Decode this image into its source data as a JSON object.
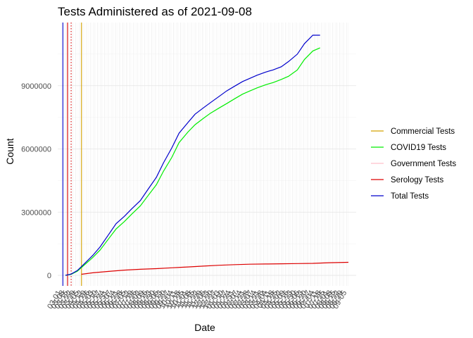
{
  "chart_data": {
    "type": "line",
    "title": "Tests Administered as of 2021-09-08",
    "xlabel": "Date",
    "ylabel": "Count",
    "ylim": [
      -500000,
      12000000
    ],
    "y_ticks": [
      0,
      3000000,
      6000000,
      9000000
    ],
    "y_tick_labels": [
      "0",
      "3000000",
      "6000000",
      "9000000"
    ],
    "x_range": [
      "2020-02-23",
      "2021-09-23"
    ],
    "x_ticks": {
      "start": "2020-03-01",
      "end": "2021-09-05",
      "step_days": 7,
      "format": "MM-DD"
    },
    "grid": true,
    "legend_position": "right",
    "series": [
      {
        "name": "Commercial Tests",
        "color": "#d4a200",
        "x": [
          "2020-04-08",
          "2020-04-09"
        ],
        "y": [
          -450000,
          11950000
        ],
        "style": "vline"
      },
      {
        "name": "COVID19 Tests",
        "color": "#00ee00",
        "x": [
          "2020-03-09",
          "2020-03-20",
          "2020-04-01",
          "2020-04-15",
          "2020-05-01",
          "2020-05-15",
          "2020-06-01",
          "2020-06-15",
          "2020-07-01",
          "2020-07-15",
          "2020-08-01",
          "2020-08-15",
          "2020-09-01",
          "2020-09-15",
          "2020-10-01",
          "2020-10-15",
          "2020-11-01",
          "2020-11-15",
          "2020-12-01",
          "2020-12-15",
          "2021-01-01",
          "2021-01-15",
          "2021-02-01",
          "2021-02-15",
          "2021-03-01",
          "2021-03-15",
          "2021-04-01",
          "2021-04-15",
          "2021-05-01",
          "2021-05-15",
          "2021-06-01",
          "2021-06-15",
          "2021-07-01",
          "2021-07-15",
          "2021-08-01",
          "2021-08-15",
          "2021-09-01",
          "2021-09-08"
        ],
        "y": [
          0,
          50000,
          200000,
          500000,
          850000,
          1200000,
          1750000,
          2200000,
          2550000,
          2900000,
          3300000,
          3750000,
          4300000,
          4950000,
          5600000,
          6300000,
          6800000,
          7150000,
          7450000,
          7700000,
          7950000,
          8150000,
          8400000,
          8600000,
          8750000,
          8900000,
          9050000,
          9150000,
          9300000,
          9450000,
          9750000,
          10250000,
          10650000,
          10800000,
          null,
          null,
          null,
          null
        ]
      },
      {
        "name": "Government Tests",
        "color": "#ffc0cb",
        "x": [
          "2020-03-16",
          "2020-03-17"
        ],
        "y": [
          -450000,
          11950000
        ],
        "style": "vline"
      },
      {
        "name": "Serology Tests",
        "color": "#dd0000",
        "x": [
          "2020-04-09",
          "2020-05-01",
          "2020-06-01",
          "2020-07-01",
          "2020-08-01",
          "2020-09-01",
          "2020-10-01",
          "2020-11-01",
          "2020-12-01",
          "2021-01-01",
          "2021-02-01",
          "2021-03-01",
          "2021-04-01",
          "2021-05-01",
          "2021-06-01",
          "2021-07-01",
          "2021-08-01",
          "2021-09-08"
        ],
        "y": [
          50000,
          120000,
          190000,
          250000,
          290000,
          320000,
          360000,
          400000,
          440000,
          480000,
          510000,
          530000,
          540000,
          550000,
          560000,
          570000,
          600000,
          620000
        ]
      },
      {
        "name": "Total Tests",
        "color": "#0000cc",
        "x": [
          "2020-03-09",
          "2020-03-20",
          "2020-04-01",
          "2020-04-15",
          "2020-05-01",
          "2020-05-15",
          "2020-06-01",
          "2020-06-15",
          "2020-07-01",
          "2020-07-15",
          "2020-08-01",
          "2020-08-15",
          "2020-09-01",
          "2020-09-15",
          "2020-10-01",
          "2020-10-15",
          "2020-11-01",
          "2020-11-15",
          "2020-12-01",
          "2020-12-15",
          "2021-01-01",
          "2021-01-15",
          "2021-02-01",
          "2021-02-15",
          "2021-03-01",
          "2021-03-15",
          "2021-04-01",
          "2021-04-15",
          "2021-05-01",
          "2021-05-15",
          "2021-06-01",
          "2021-06-15",
          "2021-07-01",
          "2021-07-15",
          "2021-08-01",
          "2021-08-15",
          "2021-09-01",
          "2021-09-08"
        ],
        "y": [
          0,
          60000,
          230000,
          560000,
          950000,
          1350000,
          1950000,
          2450000,
          2800000,
          3150000,
          3550000,
          4050000,
          4650000,
          5350000,
          6050000,
          6750000,
          7250000,
          7650000,
          7950000,
          8200000,
          8500000,
          8750000,
          9000000,
          9200000,
          9350000,
          9500000,
          9650000,
          9750000,
          9900000,
          10150000,
          10500000,
          11000000,
          11400000,
          11400000,
          null,
          null,
          null,
          null
        ]
      }
    ],
    "reference_lines": [
      {
        "x": "2020-03-04",
        "color": "#0000cc",
        "style": "solid"
      },
      {
        "x": "2020-03-13",
        "color": "#dd0000",
        "style": "solid"
      },
      {
        "x": "2020-03-20",
        "color": "#dd0000",
        "style": "dotted"
      },
      {
        "x": "2020-04-09",
        "color": "#d4a200",
        "style": "solid"
      }
    ]
  }
}
